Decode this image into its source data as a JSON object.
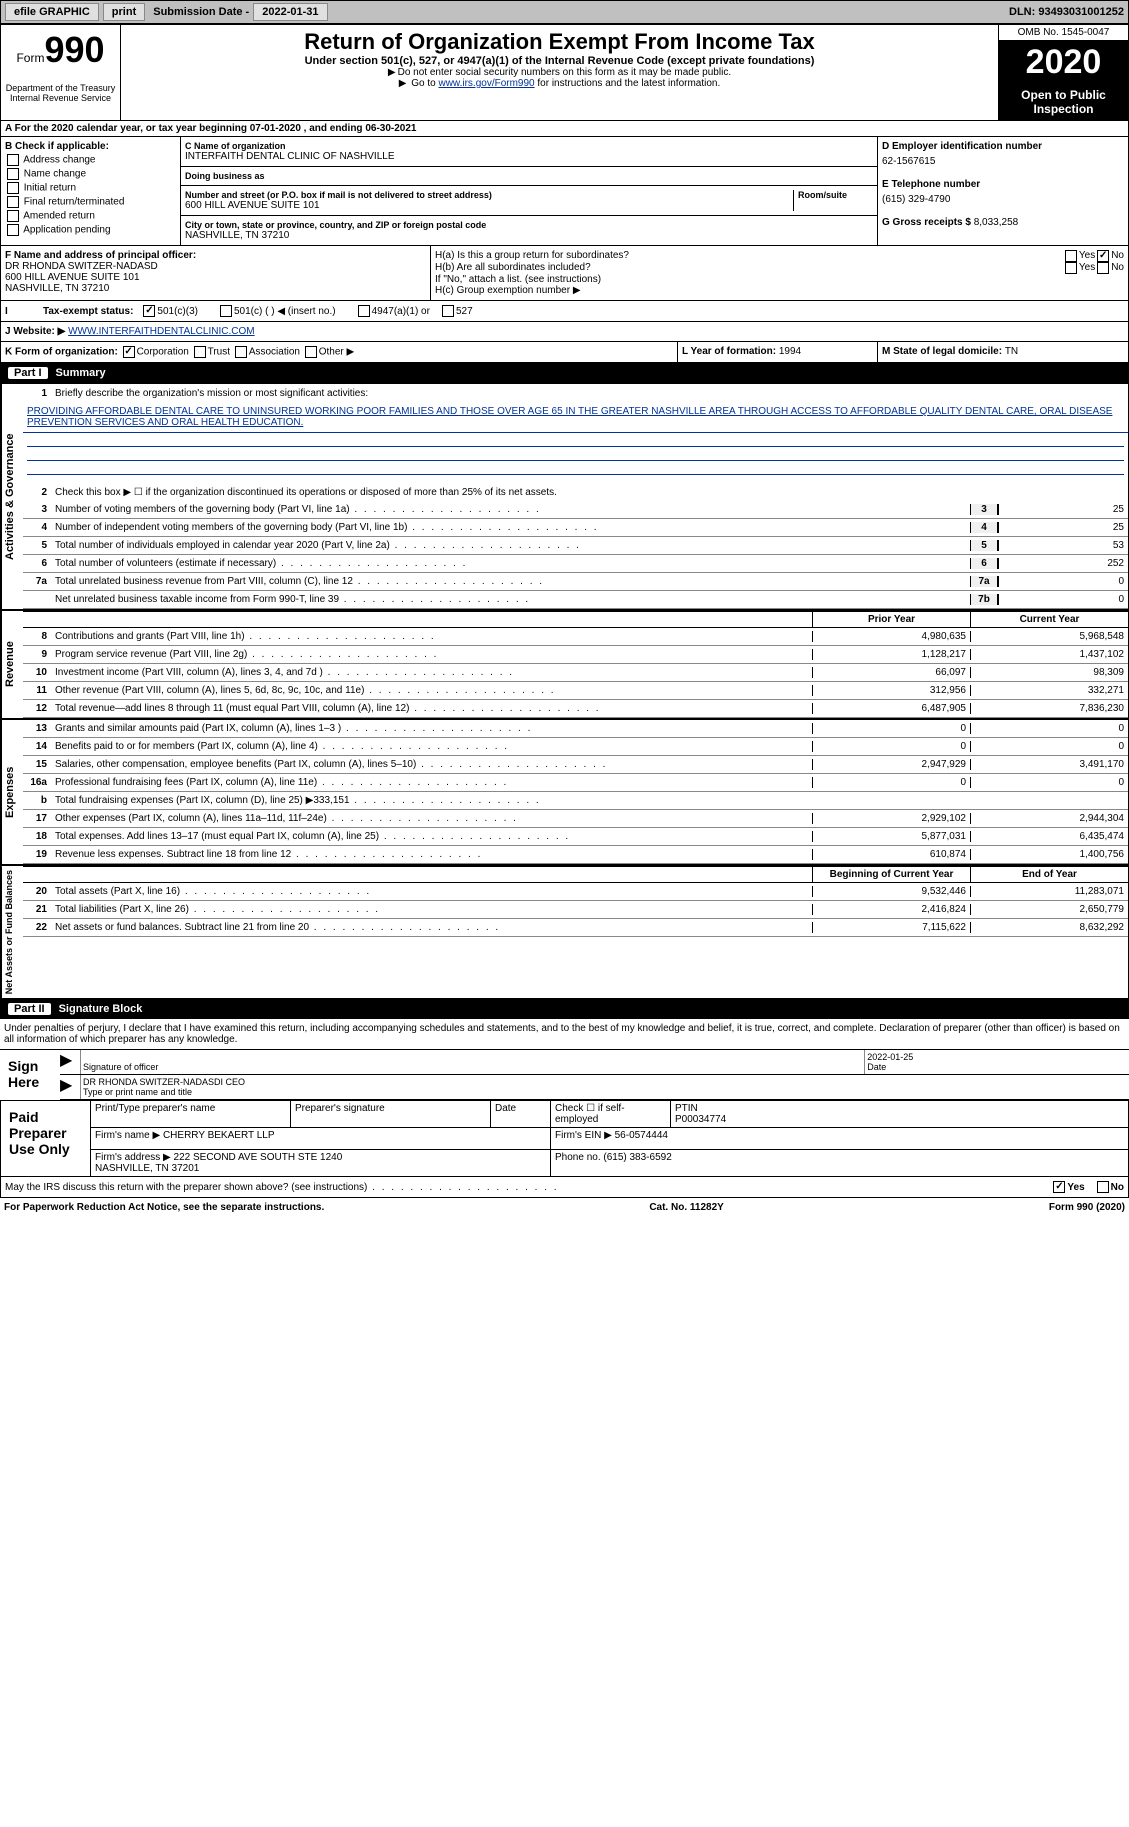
{
  "topbar": {
    "efile": "efile GRAPHIC",
    "print": "print",
    "sub_date_lbl": "Submission Date - ",
    "sub_date": "2022-01-31",
    "dln_lbl": "DLN: ",
    "dln": "93493031001252"
  },
  "header": {
    "form_word": "Form",
    "form_num": "990",
    "title": "Return of Organization Exempt From Income Tax",
    "subtitle": "Under section 501(c), 527, or 4947(a)(1) of the Internal Revenue Code (except private foundations)",
    "note1": "Do not enter social security numbers on this form as it may be made public.",
    "note2_pre": "Go to ",
    "note2_link": "www.irs.gov/Form990",
    "note2_post": " for instructions and the latest information.",
    "omb": "OMB No. 1545-0047",
    "year": "2020",
    "open": "Open to Public Inspection",
    "dept": "Department of the Treasury\nInternal Revenue Service"
  },
  "ty": {
    "line": "A For the 2020 calendar year, or tax year beginning 07-01-2020    , and ending 06-30-2021"
  },
  "box_b": {
    "hdr": "B Check if applicable:",
    "opts": [
      "Address change",
      "Name change",
      "Initial return",
      "Final return/terminated",
      "Amended return",
      "Application pending"
    ]
  },
  "box_c": {
    "name_lbl": "C Name of organization",
    "name": "INTERFAITH DENTAL CLINIC OF NASHVILLE",
    "dba_lbl": "Doing business as",
    "dba": "",
    "addr_lbl": "Number and street (or P.O. box if mail is not delivered to street address)",
    "room_lbl": "Room/suite",
    "addr": "600 HILL AVENUE SUITE 101",
    "city_lbl": "City or town, state or province, country, and ZIP or foreign postal code",
    "city": "NASHVILLE, TN  37210"
  },
  "box_d": {
    "ein_lbl": "D Employer identification number",
    "ein": "62-1567615",
    "phone_lbl": "E Telephone number",
    "phone": "(615) 329-4790",
    "gross_lbl": "G Gross receipts $ ",
    "gross": "8,033,258"
  },
  "box_f": {
    "hdr": "F Name and address of principal officer:",
    "name": "DR RHONDA SWITZER-NADASD",
    "addr1": "600 HILL AVENUE SUITE 101",
    "addr2": "NASHVILLE, TN  37210"
  },
  "box_h": {
    "a": "H(a) Is this a group return for subordinates?",
    "b": "H(b) Are all subordinates included?",
    "b_note": "If \"No,\" attach a list. (see instructions)",
    "c": "H(c) Group exemption number ▶",
    "yes": "Yes",
    "no": "No"
  },
  "row_i": {
    "lbl": "Tax-exempt status:",
    "o1": "501(c)(3)",
    "o2": "501(c) (   ) ◀ (insert no.)",
    "o3": "4947(a)(1) or",
    "o4": "527"
  },
  "row_j": {
    "lbl": "J    Website: ▶",
    "url": "WWW.INTERFAITHDENTALCLINIC.COM"
  },
  "row_k": {
    "lbl": "K Form of organization:",
    "o1": "Corporation",
    "o2": "Trust",
    "o3": "Association",
    "o4": "Other ▶",
    "l_lbl": "L Year of formation: ",
    "l_val": "1994",
    "m_lbl": "M State of legal domicile: ",
    "m_val": "TN"
  },
  "part1": {
    "num": "Part I",
    "title": "Summary",
    "l1": "Briefly describe the organization's mission or most significant activities:",
    "mission": "PROVIDING AFFORDABLE DENTAL CARE TO UNINSURED WORKING POOR FAMILIES AND THOSE OVER AGE 65 IN THE GREATER NASHVILLE AREA THROUGH ACCESS TO AFFORDABLE QUALITY DENTAL CARE, ORAL DISEASE PREVENTION SERVICES AND ORAL HEALTH EDUCATION.",
    "l2": "Check this box ▶ ☐ if the organization discontinued its operations or disposed of more than 25% of its net assets.",
    "gov_lines": [
      {
        "n": "3",
        "d": "Number of voting members of the governing body (Part VI, line 1a)",
        "c": "3",
        "v": "25"
      },
      {
        "n": "4",
        "d": "Number of independent voting members of the governing body (Part VI, line 1b)",
        "c": "4",
        "v": "25"
      },
      {
        "n": "5",
        "d": "Total number of individuals employed in calendar year 2020 (Part V, line 2a)",
        "c": "5",
        "v": "53"
      },
      {
        "n": "6",
        "d": "Total number of volunteers (estimate if necessary)",
        "c": "6",
        "v": "252"
      },
      {
        "n": "7a",
        "d": "Total unrelated business revenue from Part VIII, column (C), line 12",
        "c": "7a",
        "v": "0"
      },
      {
        "n": "",
        "d": "Net unrelated business taxable income from Form 990-T, line 39",
        "c": "7b",
        "v": "0"
      }
    ],
    "prior_hdr": "Prior Year",
    "curr_hdr": "Current Year",
    "rev_lines": [
      {
        "n": "8",
        "d": "Contributions and grants (Part VIII, line 1h)",
        "p": "4,980,635",
        "c": "5,968,548"
      },
      {
        "n": "9",
        "d": "Program service revenue (Part VIII, line 2g)",
        "p": "1,128,217",
        "c": "1,437,102"
      },
      {
        "n": "10",
        "d": "Investment income (Part VIII, column (A), lines 3, 4, and 7d )",
        "p": "66,097",
        "c": "98,309"
      },
      {
        "n": "11",
        "d": "Other revenue (Part VIII, column (A), lines 5, 6d, 8c, 9c, 10c, and 11e)",
        "p": "312,956",
        "c": "332,271"
      },
      {
        "n": "12",
        "d": "Total revenue—add lines 8 through 11 (must equal Part VIII, column (A), line 12)",
        "p": "6,487,905",
        "c": "7,836,230"
      }
    ],
    "exp_lines": [
      {
        "n": "13",
        "d": "Grants and similar amounts paid (Part IX, column (A), lines 1–3 )",
        "p": "0",
        "c": "0"
      },
      {
        "n": "14",
        "d": "Benefits paid to or for members (Part IX, column (A), line 4)",
        "p": "0",
        "c": "0"
      },
      {
        "n": "15",
        "d": "Salaries, other compensation, employee benefits (Part IX, column (A), lines 5–10)",
        "p": "2,947,929",
        "c": "3,491,170"
      },
      {
        "n": "16a",
        "d": "Professional fundraising fees (Part IX, column (A), line 11e)",
        "p": "0",
        "c": "0"
      },
      {
        "n": "b",
        "d": "Total fundraising expenses (Part IX, column (D), line 25) ▶333,151",
        "p": "",
        "c": "",
        "shade": true
      },
      {
        "n": "17",
        "d": "Other expenses (Part IX, column (A), lines 11a–11d, 11f–24e)",
        "p": "2,929,102",
        "c": "2,944,304"
      },
      {
        "n": "18",
        "d": "Total expenses. Add lines 13–17 (must equal Part IX, column (A), line 25)",
        "p": "5,877,031",
        "c": "6,435,474"
      },
      {
        "n": "19",
        "d": "Revenue less expenses. Subtract line 18 from line 12",
        "p": "610,874",
        "c": "1,400,756"
      }
    ],
    "na_hdr1": "Beginning of Current Year",
    "na_hdr2": "End of Year",
    "na_lines": [
      {
        "n": "20",
        "d": "Total assets (Part X, line 16)",
        "p": "9,532,446",
        "c": "11,283,071"
      },
      {
        "n": "21",
        "d": "Total liabilities (Part X, line 26)",
        "p": "2,416,824",
        "c": "2,650,779"
      },
      {
        "n": "22",
        "d": "Net assets or fund balances. Subtract line 21 from line 20",
        "p": "7,115,622",
        "c": "8,632,292"
      }
    ],
    "side_gov": "Activities & Governance",
    "side_rev": "Revenue",
    "side_exp": "Expenses",
    "side_na": "Net Assets or Fund Balances"
  },
  "part2": {
    "num": "Part II",
    "title": "Signature Block",
    "decl": "Under penalties of perjury, I declare that I have examined this return, including accompanying schedules and statements, and to the best of my knowledge and belief, it is true, correct, and complete. Declaration of preparer (other than officer) is based on all information of which preparer has any knowledge.",
    "sign_here": "Sign Here",
    "sig_of_officer": "Signature of officer",
    "date_lbl": "Date",
    "sig_date": "2022-01-25",
    "officer_name": "DR RHONDA SWITZER-NADASDI CEO",
    "type_name_lbl": "Type or print name and title",
    "paid": "Paid Preparer Use Only",
    "prep_name_lbl": "Print/Type preparer's name",
    "prep_sig_lbl": "Preparer's signature",
    "prep_date_lbl": "Date",
    "self_emp": "Check ☐ if self-employed",
    "ptin_lbl": "PTIN",
    "ptin": "P00034774",
    "firm_name_lbl": "Firm's name    ▶",
    "firm_name": "CHERRY BEKAERT LLP",
    "firm_ein_lbl": "Firm's EIN ▶",
    "firm_ein": "56-0574444",
    "firm_addr_lbl": "Firm's address ▶",
    "firm_addr": "222 SECOND AVE SOUTH STE 1240\nNASHVILLE, TN  37201",
    "firm_phone_lbl": "Phone no. ",
    "firm_phone": "(615) 383-6592",
    "discuss": "May the IRS discuss this return with the preparer shown above? (see instructions)",
    "yes": "Yes",
    "no": "No"
  },
  "footer": {
    "left": "For Paperwork Reduction Act Notice, see the separate instructions.",
    "mid": "Cat. No. 11282Y",
    "right": "Form 990 (2020)"
  }
}
